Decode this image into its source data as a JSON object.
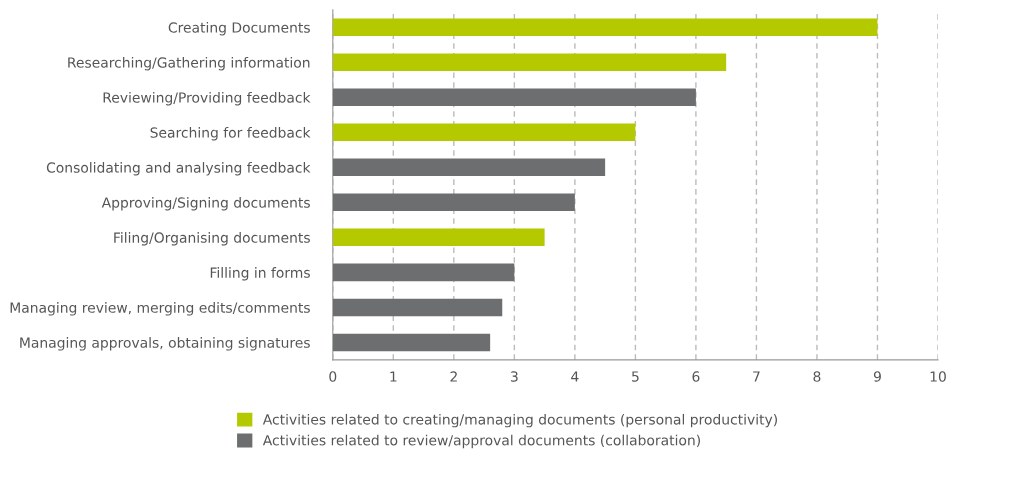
{
  "chart_data": {
    "type": "bar",
    "orientation": "horizontal",
    "categories": [
      "Creating Documents",
      "Researching/Gathering information",
      "Reviewing/Providing feedback",
      "Searching for feedback",
      "Consolidating and analysing feedback",
      "Approving/Signing documents",
      "Filing/Organising documents",
      "Filling in forms",
      "Managing review, merging edits/comments",
      "Managing approvals, obtaining signatures"
    ],
    "series": [
      {
        "name": "Activities related to creating/managing documents (personal productivity)",
        "color": "#b5c900",
        "values": [
          9,
          6.5,
          null,
          5,
          null,
          null,
          3.5,
          null,
          null,
          null
        ]
      },
      {
        "name": "Activities related to review/approval documents (collaboration)",
        "color": "#6d6e70",
        "values": [
          null,
          null,
          6,
          null,
          4.5,
          4,
          null,
          3,
          2.8,
          2.6
        ]
      }
    ],
    "xlim": [
      0,
      10
    ],
    "xticks": [
      0,
      1,
      2,
      3,
      4,
      5,
      6,
      7,
      8,
      9,
      10
    ],
    "grid": "x",
    "legend": "bottom"
  }
}
